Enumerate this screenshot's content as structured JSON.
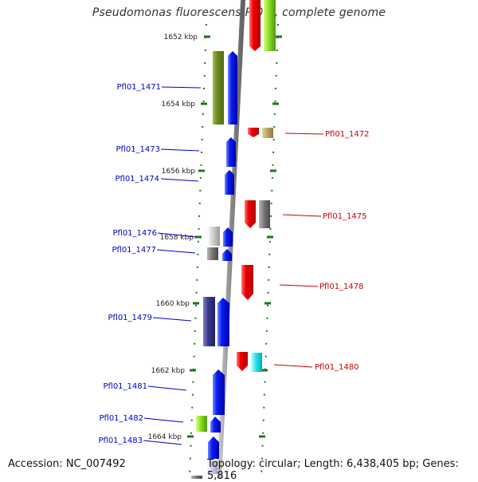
{
  "title": "Pseudomonas fluorescens Pf0-1, complete genome",
  "accession": "Accession: NC_007492",
  "topology": "Topology: circular; Length: 6,438,405 bp; Genes: 5,816",
  "ruler_labels": [
    "1652 kbp",
    "1654 kbp",
    "1656 kbp",
    "1658 kbp",
    "1660 kbp",
    "1662 kbp",
    "1664 kbp"
  ],
  "genes": [
    {
      "name": "Pfl01_1471",
      "side": "left",
      "color": "#1a5cff"
    },
    {
      "name": "Pfl01_1472",
      "side": "right",
      "color": "#dd1111"
    },
    {
      "name": "Pfl01_1473",
      "side": "left",
      "color": "#1a5cff"
    },
    {
      "name": "Pfl01_1474",
      "side": "left",
      "color": "#1a5cff"
    },
    {
      "name": "Pfl01_1475",
      "side": "right",
      "color": "#dd1111"
    },
    {
      "name": "Pfl01_1476",
      "side": "left",
      "color": "#1a5cff"
    },
    {
      "name": "Pfl01_1477",
      "side": "left",
      "color": "#1a5cff"
    },
    {
      "name": "Pfl01_1478",
      "side": "right",
      "color": "#dd1111"
    },
    {
      "name": "Pfl01_1479",
      "side": "left",
      "color": "#1a5cff"
    },
    {
      "name": "Pfl01_1480",
      "side": "right",
      "color": "#dd1111"
    },
    {
      "name": "Pfl01_1481",
      "side": "left",
      "color": "#1a5cff"
    },
    {
      "name": "Pfl01_1482",
      "side": "left",
      "color": "#1a5cff"
    },
    {
      "name": "Pfl01_1483",
      "side": "left",
      "color": "#1a5cff"
    }
  ],
  "colors": {
    "plus_strand": "#0000ee",
    "minus_strand": "#ee0000",
    "label_left": "#0000cc",
    "label_right": "#cc0000",
    "backbone": "#8a8a8a",
    "tick": "#1a7a1a"
  }
}
